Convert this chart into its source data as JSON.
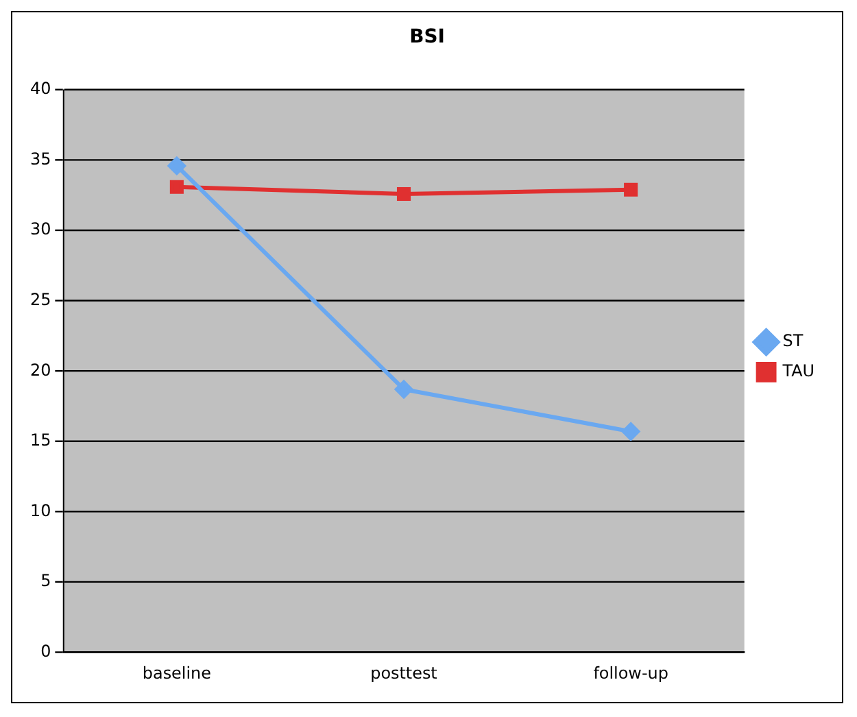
{
  "chart_data": {
    "type": "line",
    "title": "BSI",
    "categories": [
      "baseline",
      "posttest",
      "follow-up"
    ],
    "series": [
      {
        "name": "ST",
        "color": "#6aa8f0",
        "values": [
          34.6,
          18.7,
          15.7
        ],
        "marker": "diamond"
      },
      {
        "name": "TAU",
        "color": "#e03030",
        "values": [
          33.1,
          32.6,
          32.9
        ],
        "marker": "square"
      }
    ],
    "ylim": [
      0,
      40
    ],
    "yticks": [
      0,
      5,
      10,
      15,
      20,
      25,
      30,
      35,
      40
    ],
    "grid": "y",
    "legend": "right",
    "line_style": "solid"
  }
}
